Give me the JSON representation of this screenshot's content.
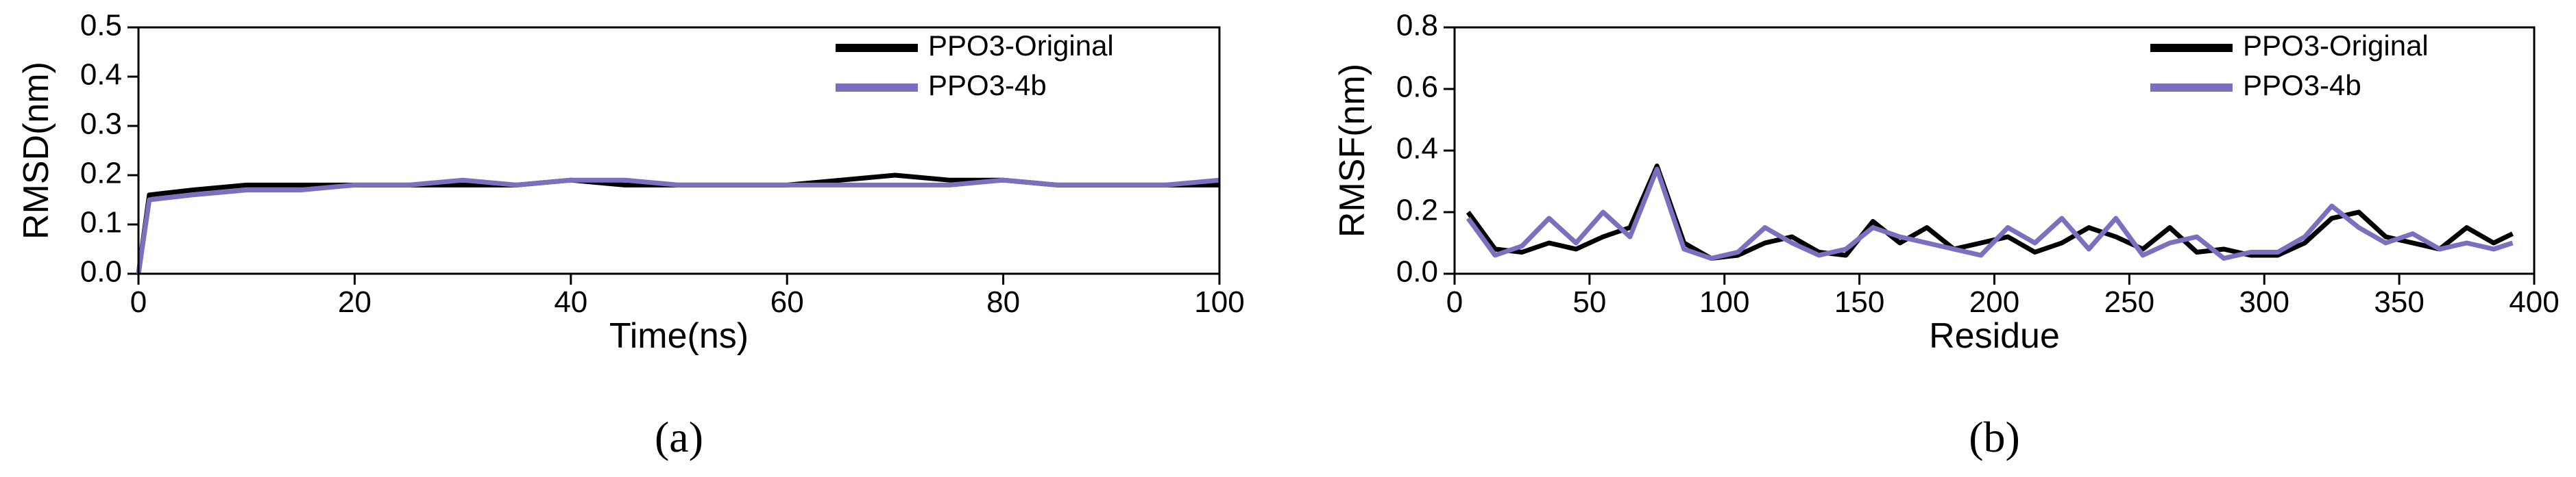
{
  "chart_data": [
    {
      "type": "line",
      "label": "(a)",
      "x_label": "Time(ns)",
      "y_label": "RMSD(nm)",
      "x": [
        0,
        1,
        5,
        10,
        15,
        20,
        25,
        30,
        35,
        40,
        45,
        50,
        55,
        60,
        65,
        70,
        75,
        80,
        85,
        90,
        95,
        100
      ],
      "series": [
        {
          "name": "PPO3-Original",
          "color": "#000000",
          "values": [
            0,
            0.16,
            0.17,
            0.18,
            0.18,
            0.18,
            0.18,
            0.18,
            0.18,
            0.19,
            0.18,
            0.18,
            0.18,
            0.18,
            0.19,
            0.2,
            0.19,
            0.19,
            0.18,
            0.18,
            0.18,
            0.18
          ]
        },
        {
          "name": "PPO3-4b",
          "color": "#7b6fc0",
          "values": [
            0,
            0.15,
            0.16,
            0.17,
            0.17,
            0.18,
            0.18,
            0.19,
            0.18,
            0.19,
            0.19,
            0.18,
            0.18,
            0.18,
            0.18,
            0.18,
            0.18,
            0.19,
            0.18,
            0.18,
            0.18,
            0.19
          ]
        }
      ],
      "xlim": [
        0,
        100
      ],
      "xticks": [
        0,
        20,
        40,
        60,
        80,
        100
      ],
      "ylim": [
        0,
        0.5
      ],
      "yticks": [
        {
          "value": 0,
          "label": "0.0"
        },
        0.1,
        0.2,
        0.3,
        0.4,
        0.5
      ],
      "legend": "upper right"
    },
    {
      "type": "line",
      "label": "(b)",
      "x_label": "Residue",
      "y_label": "RMSF(nm)",
      "x": [
        5,
        15,
        25,
        35,
        45,
        55,
        65,
        75,
        85,
        95,
        105,
        115,
        125,
        135,
        145,
        155,
        165,
        175,
        185,
        195,
        205,
        215,
        225,
        235,
        245,
        255,
        265,
        275,
        285,
        295,
        305,
        315,
        325,
        335,
        345,
        355,
        365,
        375,
        385,
        392
      ],
      "series": [
        {
          "name": "PPO3-Original",
          "color": "#000000",
          "values": [
            0.2,
            0.08,
            0.07,
            0.1,
            0.08,
            0.12,
            0.15,
            0.35,
            0.1,
            0.05,
            0.06,
            0.1,
            0.12,
            0.07,
            0.06,
            0.17,
            0.1,
            0.15,
            0.08,
            0.1,
            0.12,
            0.07,
            0.1,
            0.15,
            0.12,
            0.08,
            0.15,
            0.07,
            0.08,
            0.06,
            0.06,
            0.1,
            0.18,
            0.2,
            0.12,
            0.1,
            0.08,
            0.15,
            0.1,
            0.13
          ]
        },
        {
          "name": "PPO3-4b",
          "color": "#7b6fc0",
          "values": [
            0.18,
            0.06,
            0.09,
            0.18,
            0.1,
            0.2,
            0.12,
            0.34,
            0.08,
            0.05,
            0.07,
            0.15,
            0.1,
            0.06,
            0.08,
            0.15,
            0.12,
            0.1,
            0.08,
            0.06,
            0.15,
            0.1,
            0.18,
            0.08,
            0.18,
            0.06,
            0.1,
            0.12,
            0.05,
            0.07,
            0.07,
            0.12,
            0.22,
            0.15,
            0.1,
            0.13,
            0.08,
            0.1,
            0.08,
            0.1
          ]
        }
      ],
      "xlim": [
        0,
        400
      ],
      "xticks": [
        0,
        50,
        100,
        150,
        200,
        250,
        300,
        350,
        400
      ],
      "ylim": [
        0,
        0.8
      ],
      "yticks": [
        {
          "value": 0,
          "label": "0.0"
        },
        0.2,
        0.4,
        0.6,
        0.8
      ],
      "legend": "upper right"
    }
  ]
}
